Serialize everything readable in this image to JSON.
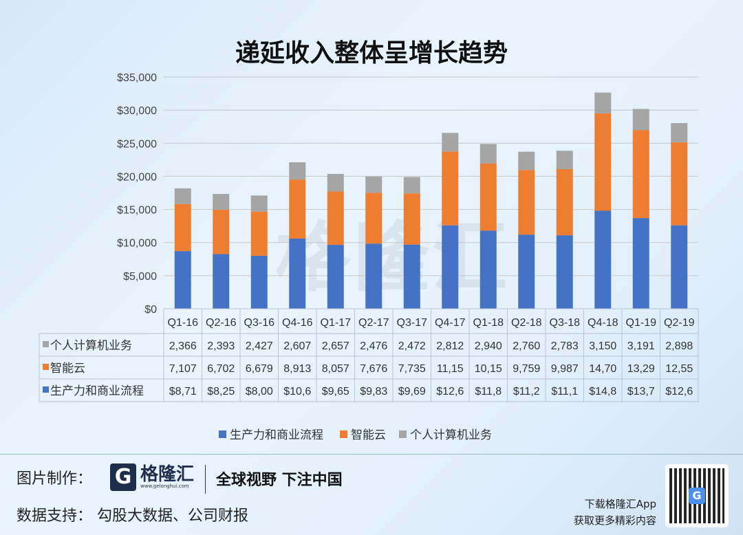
{
  "chart_data": {
    "type": "bar",
    "stacked": true,
    "title": "递延收入整体呈增长趋势",
    "categories": [
      "Q1-16",
      "Q2-16",
      "Q3-16",
      "Q4-16",
      "Q1-17",
      "Q2-17",
      "Q3-17",
      "Q4-17",
      "Q1-18",
      "Q2-18",
      "Q3-18",
      "Q4-18",
      "Q1-19",
      "Q2-19"
    ],
    "yticks": [
      "$0",
      "$5,000",
      "$10,000",
      "$15,000",
      "$20,000",
      "$25,000",
      "$30,000",
      "$35,000"
    ],
    "ylim": [
      0,
      35000
    ],
    "grid": true,
    "legend_position": "bottom",
    "series": [
      {
        "name": "生产力和商业流程",
        "color": "#4472c4",
        "values": [
          8710,
          8250,
          8000,
          10600,
          9650,
          9830,
          9690,
          12600,
          11800,
          11200,
          11100,
          14800,
          13700,
          12600
        ],
        "labels": [
          "$8,71",
          "$8,25",
          "$8,00",
          "$10,6",
          "$9,65",
          "$9,83",
          "$9,69",
          "$12,6",
          "$11,8",
          "$11,2",
          "$11,1",
          "$14,8",
          "$13,7",
          "$12,6"
        ]
      },
      {
        "name": "智能云",
        "color": "#ed7d31",
        "values": [
          7107,
          6702,
          6679,
          8913,
          8057,
          7676,
          7735,
          11150,
          10150,
          9759,
          9987,
          14700,
          13290,
          12550
        ],
        "labels": [
          "7,107",
          "6,702",
          "6,679",
          "8,913",
          "8,057",
          "7,676",
          "7,735",
          "11,15",
          "10,15",
          "9,759",
          "9,987",
          "14,70",
          "13,29",
          "12,55"
        ]
      },
      {
        "name": "个人计算机业务",
        "color": "#a5a5a5",
        "values": [
          2366,
          2393,
          2427,
          2607,
          2657,
          2476,
          2472,
          2812,
          2940,
          2760,
          2783,
          3150,
          3191,
          2898
        ],
        "labels": [
          "2,366",
          "2,393",
          "2,427",
          "2,607",
          "2,657",
          "2,476",
          "2,472",
          "2,812",
          "2,940",
          "2,760",
          "2,783",
          "3,150",
          "3,191",
          "2,898"
        ]
      }
    ],
    "table_row_order": [
      2,
      1,
      0
    ]
  },
  "watermark": "格隆汇",
  "footer": {
    "made_by": "图片制作：",
    "logo": "格隆汇",
    "logo_url": "www.gelonghui.com",
    "slogan": "全球视野 下注中国",
    "data_source": "数据支持：  勾股大数据、公司财报",
    "app_line1": "下载格隆汇App",
    "app_line2": "获取更多精彩内容"
  }
}
